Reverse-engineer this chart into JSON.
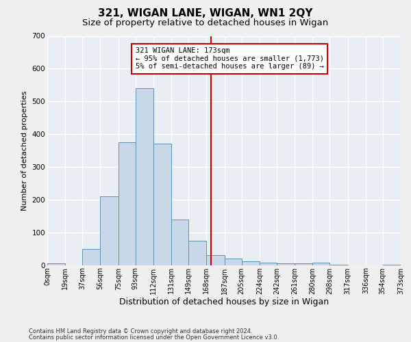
{
  "title": "321, WIGAN LANE, WIGAN, WN1 2QY",
  "subtitle": "Size of property relative to detached houses in Wigan",
  "xlabel": "Distribution of detached houses by size in Wigan",
  "ylabel": "Number of detached properties",
  "bar_edges": [
    0,
    19,
    37,
    56,
    75,
    93,
    112,
    131,
    149,
    168,
    187,
    205,
    224,
    242,
    261,
    280,
    298,
    317,
    336,
    354,
    373
  ],
  "bar_heights": [
    5,
    0,
    50,
    210,
    375,
    540,
    370,
    140,
    75,
    30,
    20,
    12,
    8,
    5,
    5,
    8,
    2,
    0,
    0,
    2
  ],
  "bar_color": "#c8d8e8",
  "bar_edge_color": "#6090b0",
  "property_size": 173,
  "red_line_color": "#cc0000",
  "annotation_line1": "321 WIGAN LANE: 173sqm",
  "annotation_line2": "← 95% of detached houses are smaller (1,773)",
  "annotation_line3": "5% of semi-detached houses are larger (89) →",
  "annotation_box_color": "#ffffff",
  "annotation_box_edge": "#cc0000",
  "ylim": [
    0,
    700
  ],
  "yticks": [
    0,
    100,
    200,
    300,
    400,
    500,
    600,
    700
  ],
  "background_color": "#e8eef4",
  "grid_color": "#ffffff",
  "footer1": "Contains HM Land Registry data © Crown copyright and database right 2024.",
  "footer2": "Contains public sector information licensed under the Open Government Licence v3.0.",
  "fig_bg": "#f0f0f0",
  "xlim": [
    0,
    373
  ]
}
